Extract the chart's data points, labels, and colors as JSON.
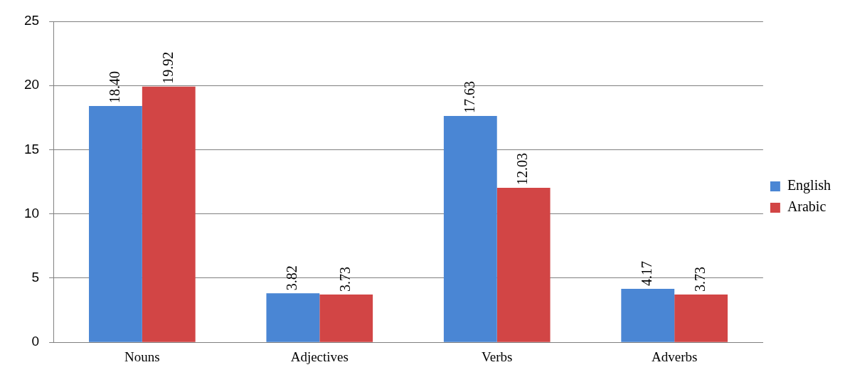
{
  "chart_data": {
    "type": "bar",
    "categories": [
      "Nouns",
      "Adjectives",
      "Verbs",
      "Adverbs"
    ],
    "series": [
      {
        "name": "English",
        "color": "#4a86d4",
        "values": [
          18.4,
          3.82,
          17.63,
          4.17
        ],
        "value_labels": [
          "18.40",
          "3.82",
          "17.63",
          "4.17"
        ]
      },
      {
        "name": "Arabic",
        "color": "#d24545",
        "values": [
          19.92,
          3.73,
          12.03,
          3.73
        ],
        "value_labels": [
          "19.92",
          "3.73",
          "12.03",
          "3.73"
        ]
      }
    ],
    "ylim": [
      0,
      25
    ],
    "yticks": [
      0,
      5,
      10,
      15,
      20,
      25
    ],
    "grid": "y",
    "legend": "right"
  }
}
